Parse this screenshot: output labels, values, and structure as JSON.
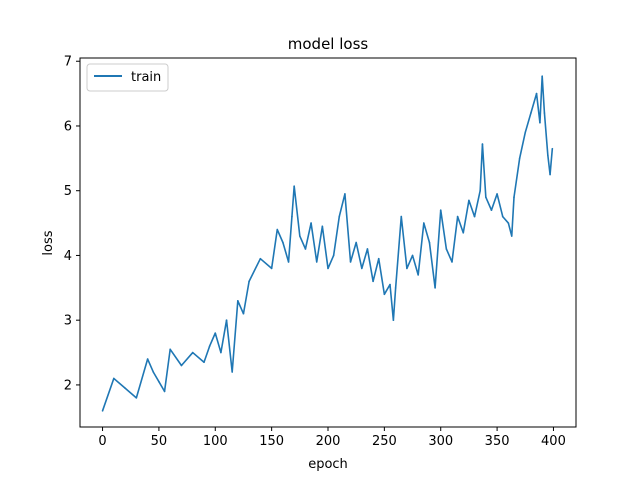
{
  "chart_data": {
    "type": "line",
    "title": "model loss",
    "xlabel": "epoch",
    "ylabel": "loss",
    "xlim": [
      -20,
      420
    ],
    "ylim": [
      1.35,
      7.05
    ],
    "xticks": [
      0,
      50,
      100,
      150,
      200,
      250,
      300,
      350,
      400
    ],
    "yticks": [
      2,
      3,
      4,
      5,
      6,
      7
    ],
    "grid": false,
    "legend": {
      "position": "top-left",
      "entries": [
        "train"
      ]
    },
    "series": [
      {
        "name": "train",
        "color": "#1f77b4",
        "x": [
          0,
          10,
          20,
          30,
          40,
          45,
          50,
          55,
          60,
          70,
          80,
          90,
          95,
          100,
          105,
          110,
          115,
          120,
          125,
          130,
          140,
          150,
          155,
          160,
          165,
          168,
          170,
          175,
          180,
          185,
          190,
          195,
          200,
          205,
          210,
          215,
          220,
          225,
          230,
          235,
          240,
          245,
          250,
          255,
          258,
          260,
          265,
          270,
          275,
          280,
          285,
          290,
          295,
          300,
          305,
          310,
          315,
          320,
          325,
          330,
          335,
          337,
          340,
          345,
          350,
          355,
          360,
          363,
          365,
          370,
          375,
          380,
          385,
          388,
          390,
          392,
          395,
          397,
          399
        ],
        "y": [
          1.6,
          2.1,
          1.95,
          1.8,
          2.4,
          2.2,
          2.05,
          1.9,
          2.55,
          2.3,
          2.5,
          2.35,
          2.6,
          2.8,
          2.5,
          3.0,
          2.2,
          3.3,
          3.1,
          3.6,
          3.95,
          3.8,
          4.4,
          4.2,
          3.9,
          4.6,
          5.07,
          4.3,
          4.1,
          4.5,
          3.9,
          4.45,
          3.8,
          4.0,
          4.6,
          4.95,
          3.9,
          4.2,
          3.8,
          4.1,
          3.6,
          3.95,
          3.4,
          3.55,
          3.0,
          3.5,
          4.6,
          3.8,
          4.0,
          3.7,
          4.5,
          4.2,
          3.5,
          4.7,
          4.1,
          3.9,
          4.6,
          4.35,
          4.85,
          4.6,
          5.0,
          5.72,
          4.9,
          4.7,
          4.95,
          4.6,
          4.5,
          4.3,
          4.9,
          5.5,
          5.9,
          6.2,
          6.5,
          6.05,
          6.77,
          6.2,
          5.55,
          5.25,
          5.65
        ]
      }
    ]
  }
}
